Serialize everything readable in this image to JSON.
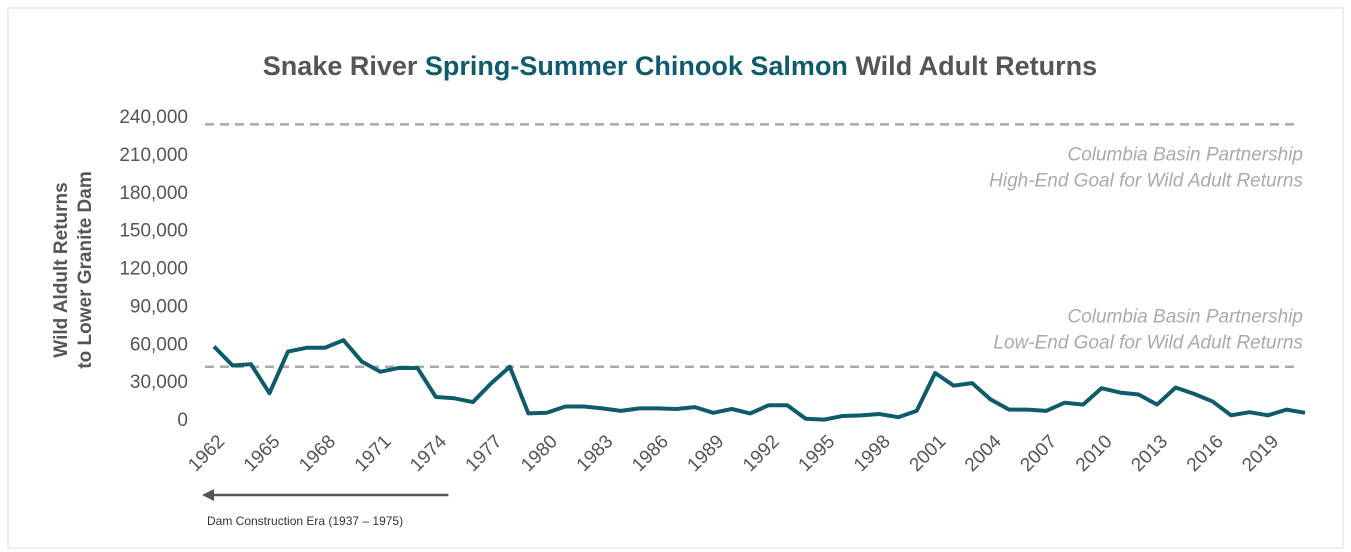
{
  "chart_data": {
    "type": "line",
    "title_parts": [
      {
        "text": "Snake River ",
        "color": "#555555"
      },
      {
        "text": "Spring-Summer Chinook Salmon",
        "color": "#0e5c6b"
      },
      {
        "text": " Wild Adult Returns",
        "color": "#555555"
      }
    ],
    "y_label": [
      "Wild Aldult Returns",
      "to Lower Granite Dam"
    ],
    "x": [
      1962,
      1963,
      1964,
      1965,
      1966,
      1967,
      1968,
      1969,
      1970,
      1971,
      1972,
      1973,
      1974,
      1975,
      1976,
      1977,
      1978,
      1979,
      1980,
      1981,
      1982,
      1983,
      1984,
      1985,
      1986,
      1987,
      1988,
      1989,
      1990,
      1991,
      1992,
      1993,
      1994,
      1995,
      1996,
      1997,
      1998,
      1999,
      2000,
      2001,
      2002,
      2003,
      2004,
      2005,
      2006,
      2007,
      2008,
      2009,
      2010,
      2011,
      2012,
      2013,
      2014,
      2015,
      2016,
      2017,
      2018,
      2019,
      2020,
      2021
    ],
    "series": [
      {
        "name": "Wild Adult Returns",
        "color": "#0e5c6b",
        "values": [
          59000,
          44000,
          45000,
          22000,
          55000,
          58000,
          58000,
          64000,
          47000,
          39000,
          42000,
          42000,
          19000,
          18000,
          15000,
          30000,
          43000,
          6000,
          6500,
          11500,
          11500,
          10000,
          8000,
          10000,
          10000,
          9500,
          11000,
          6500,
          9500,
          6000,
          12500,
          12500,
          1800,
          1100,
          4000,
          4500,
          5500,
          3000,
          8000,
          38000,
          28000,
          30000,
          17000,
          9000,
          9000,
          8000,
          14500,
          13000,
          26000,
          22500,
          21000,
          13000,
          26500,
          21500,
          15500,
          4500,
          7000,
          4500,
          9000,
          6500
        ]
      }
    ],
    "xlim": [
      1962,
      2021
    ],
    "xticks": [
      1962,
      1965,
      1968,
      1971,
      1974,
      1977,
      1980,
      1983,
      1986,
      1989,
      1992,
      1995,
      1998,
      2001,
      2004,
      2007,
      2010,
      2013,
      2016,
      2019
    ],
    "ylim": [
      0,
      240000
    ],
    "yticks": [
      0,
      {
        "value": 30000,
        "label": "30,000"
      },
      {
        "value": 60000,
        "label": "60,000"
      },
      {
        "value": 90000,
        "label": "90,000"
      },
      {
        "value": 120000,
        "label": "120,000"
      },
      {
        "value": 150000,
        "label": "150,000"
      },
      {
        "value": 180000,
        "label": "180,000"
      },
      {
        "value": 210000,
        "label": "210,000"
      },
      {
        "value": 240000,
        "label": "240,000"
      }
    ],
    "goals": [
      {
        "value": 235000,
        "text": [
          "Columbia Basin Partnership",
          "High-End Goal for Wild Adult Returns"
        ]
      },
      {
        "value": 43000,
        "text": [
          "Columbia Basin Partnership",
          "Low-End Goal for Wild Adult Returns"
        ]
      }
    ],
    "era_annotation": {
      "text": "Dam Construction Era  (1937 – 1975)",
      "x_end": 1975
    }
  }
}
